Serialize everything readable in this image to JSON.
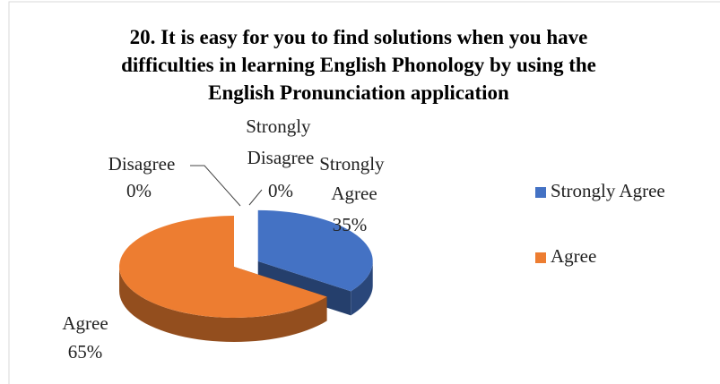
{
  "chart_data": {
    "type": "pie3d",
    "title": "20. It is easy for you to find solutions when you have difficulties in learning English Phonology by using the English Pronunciation application",
    "categories": [
      "Strongly Agree",
      "Agree",
      "Disagree",
      "Strongly Disagree"
    ],
    "values": [
      35,
      65,
      0,
      0
    ],
    "value_labels": [
      "35%",
      "65%",
      "0%",
      "0%"
    ],
    "colors": [
      "#4472c4",
      "#ed7d31",
      "#a5a5a5",
      "#ffc000"
    ],
    "exploded": [
      0
    ],
    "legend": "right"
  }
}
